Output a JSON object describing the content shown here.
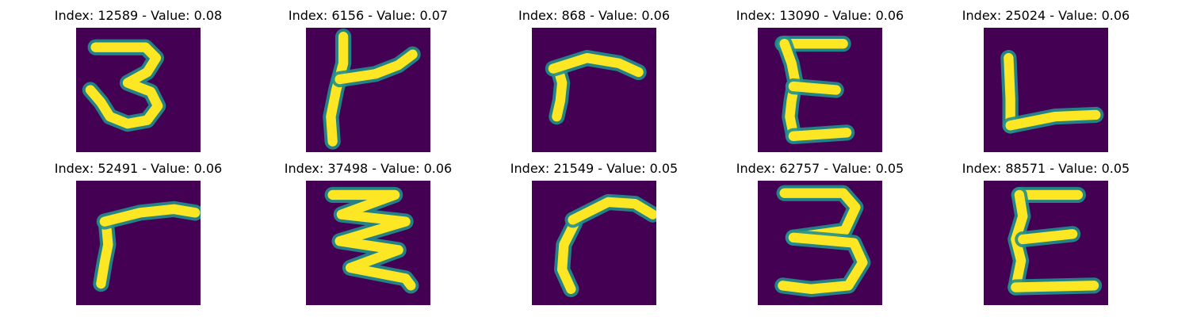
{
  "panels": [
    {
      "title": "Index: 12589 - Value: 0.08",
      "glyph": "3",
      "colormap": "viridis",
      "strokes": [
        [
          [
            22,
            22
          ],
          [
            78,
            22
          ],
          [
            90,
            34
          ],
          [
            80,
            50
          ],
          [
            58,
            62
          ],
          [
            84,
            72
          ],
          [
            92,
            88
          ],
          [
            80,
            104
          ],
          [
            58,
            108
          ],
          [
            38,
            100
          ],
          [
            28,
            84
          ],
          [
            16,
            70
          ]
        ]
      ]
    },
    {
      "title": "Index: 6156 - Value: 0.07",
      "glyph": "k",
      "colormap": "viridis",
      "strokes": [
        [
          [
            42,
            10
          ],
          [
            42,
            40
          ],
          [
            34,
            70
          ],
          [
            28,
            100
          ],
          [
            30,
            128
          ]
        ],
        [
          [
            38,
            58
          ],
          [
            78,
            52
          ],
          [
            104,
            42
          ],
          [
            120,
            30
          ]
        ]
      ]
    },
    {
      "title": "Index: 868 - Value: 0.06",
      "glyph": "r",
      "colormap": "viridis",
      "strokes": [
        [
          [
            28,
            100
          ],
          [
            32,
            82
          ],
          [
            34,
            62
          ],
          [
            30,
            48
          ]
        ],
        [
          [
            24,
            46
          ],
          [
            62,
            34
          ],
          [
            98,
            40
          ],
          [
            120,
            50
          ]
        ]
      ]
    },
    {
      "title": "Index: 13090 - Value: 0.06",
      "glyph": "E",
      "colormap": "viridis",
      "strokes": [
        [
          [
            28,
            18
          ],
          [
            96,
            18
          ]
        ],
        [
          [
            30,
            18
          ],
          [
            38,
            40
          ],
          [
            42,
            60
          ],
          [
            38,
            82
          ],
          [
            36,
            100
          ],
          [
            40,
            120
          ]
        ],
        [
          [
            40,
            66
          ],
          [
            88,
            70
          ]
        ],
        [
          [
            40,
            122
          ],
          [
            100,
            118
          ]
        ]
      ]
    },
    {
      "title": "Index: 25024 - Value: 0.06",
      "glyph": "L",
      "colormap": "viridis",
      "strokes": [
        [
          [
            28,
            34
          ],
          [
            30,
            80
          ],
          [
            30,
            110
          ]
        ],
        [
          [
            30,
            110
          ],
          [
            80,
            100
          ],
          [
            126,
            98
          ]
        ]
      ]
    },
    {
      "title": "Index: 52491 - Value: 0.06",
      "glyph": "r",
      "colormap": "viridis",
      "strokes": [
        [
          [
            28,
            116
          ],
          [
            32,
            92
          ],
          [
            36,
            72
          ],
          [
            34,
            50
          ]
        ],
        [
          [
            32,
            46
          ],
          [
            72,
            36
          ],
          [
            110,
            32
          ],
          [
            134,
            36
          ]
        ]
      ]
    },
    {
      "title": "Index: 37498 - Value: 0.06",
      "glyph": "Z",
      "colormap": "viridis",
      "strokes": [
        [
          [
            30,
            16
          ],
          [
            100,
            16
          ],
          [
            40,
            38
          ],
          [
            112,
            46
          ],
          [
            38,
            68
          ],
          [
            104,
            78
          ],
          [
            50,
            98
          ],
          [
            112,
            110
          ],
          [
            118,
            118
          ]
        ]
      ]
    },
    {
      "title": "Index: 21549 - Value: 0.05",
      "glyph": "r",
      "colormap": "viridis",
      "strokes": [
        [
          [
            44,
            122
          ],
          [
            34,
            100
          ],
          [
            36,
            72
          ],
          [
            48,
            48
          ]
        ],
        [
          [
            46,
            44
          ],
          [
            86,
            24
          ],
          [
            116,
            26
          ],
          [
            136,
            38
          ]
        ]
      ]
    },
    {
      "title": "Index: 62757 - Value: 0.05",
      "glyph": "3",
      "colormap": "viridis",
      "strokes": [
        [
          [
            30,
            14
          ],
          [
            96,
            14
          ],
          [
            110,
            30
          ],
          [
            98,
            56
          ],
          [
            40,
            64
          ]
        ],
        [
          [
            40,
            64
          ],
          [
            108,
            70
          ],
          [
            118,
            92
          ],
          [
            102,
            118
          ],
          [
            60,
            122
          ],
          [
            28,
            118
          ]
        ]
      ]
    },
    {
      "title": "Index: 88571 - Value: 0.05",
      "glyph": "E",
      "colormap": "viridis",
      "strokes": [
        [
          [
            40,
            16
          ],
          [
            106,
            16
          ]
        ],
        [
          [
            40,
            16
          ],
          [
            44,
            40
          ],
          [
            36,
            66
          ],
          [
            42,
            90
          ],
          [
            36,
            120
          ]
        ],
        [
          [
            44,
            66
          ],
          [
            100,
            60
          ]
        ],
        [
          [
            36,
            120
          ],
          [
            124,
            118
          ]
        ]
      ]
    }
  ],
  "colors": {
    "background": "#440154",
    "edge": "#21908d",
    "core": "#fde725"
  }
}
